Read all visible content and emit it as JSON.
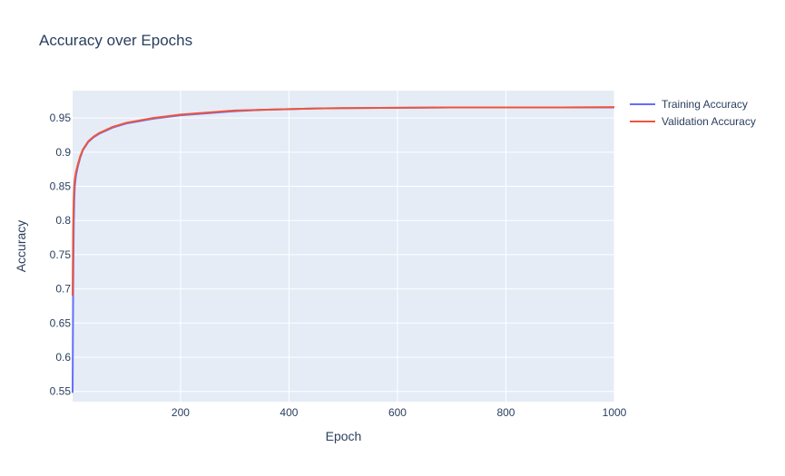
{
  "chart_data": {
    "type": "line",
    "title": "Accuracy over Epochs",
    "xlabel": "Epoch",
    "ylabel": "Accuracy",
    "xlim": [
      1,
      1000
    ],
    "ylim": [
      0.535,
      0.99
    ],
    "xticks": [
      200,
      400,
      600,
      800,
      1000
    ],
    "yticks": [
      0.55,
      0.6,
      0.65,
      0.7,
      0.75,
      0.8,
      0.85,
      0.9,
      0.95
    ],
    "ytick_labels": [
      "0.55",
      "0.6",
      "0.65",
      "0.7",
      "0.75",
      "0.8",
      "0.85",
      "0.9",
      "0.95"
    ],
    "grid": true,
    "legend_position": "right",
    "plot_bg": "#e5ecf6",
    "series": [
      {
        "name": "Training Accuracy",
        "color": "#636efa",
        "points": [
          [
            1,
            0.548
          ],
          [
            2,
            0.7
          ],
          [
            3,
            0.79
          ],
          [
            4,
            0.83
          ],
          [
            5,
            0.85
          ],
          [
            7,
            0.865
          ],
          [
            10,
            0.877
          ],
          [
            15,
            0.892
          ],
          [
            20,
            0.903
          ],
          [
            30,
            0.915
          ],
          [
            40,
            0.922
          ],
          [
            50,
            0.927
          ],
          [
            75,
            0.936
          ],
          [
            100,
            0.942
          ],
          [
            150,
            0.949
          ],
          [
            200,
            0.954
          ],
          [
            250,
            0.957
          ],
          [
            300,
            0.96
          ],
          [
            350,
            0.962
          ],
          [
            400,
            0.963
          ],
          [
            450,
            0.964
          ],
          [
            500,
            0.9645
          ],
          [
            600,
            0.965
          ],
          [
            700,
            0.9655
          ],
          [
            800,
            0.9655
          ],
          [
            900,
            0.9655
          ],
          [
            1000,
            0.9655
          ]
        ]
      },
      {
        "name": "Validation Accuracy",
        "color": "#ef553b",
        "points": [
          [
            1,
            0.69
          ],
          [
            2,
            0.79
          ],
          [
            3,
            0.83
          ],
          [
            4,
            0.85
          ],
          [
            5,
            0.86
          ],
          [
            7,
            0.87
          ],
          [
            10,
            0.88
          ],
          [
            15,
            0.894
          ],
          [
            20,
            0.904
          ],
          [
            30,
            0.916
          ],
          [
            40,
            0.923
          ],
          [
            50,
            0.928
          ],
          [
            75,
            0.937
          ],
          [
            100,
            0.943
          ],
          [
            150,
            0.95
          ],
          [
            200,
            0.955
          ],
          [
            250,
            0.958
          ],
          [
            300,
            0.961
          ],
          [
            350,
            0.962
          ],
          [
            400,
            0.963
          ],
          [
            450,
            0.964
          ],
          [
            500,
            0.9645
          ],
          [
            600,
            0.965
          ],
          [
            700,
            0.9655
          ],
          [
            800,
            0.9655
          ],
          [
            900,
            0.9655
          ],
          [
            1000,
            0.966
          ]
        ]
      }
    ]
  }
}
